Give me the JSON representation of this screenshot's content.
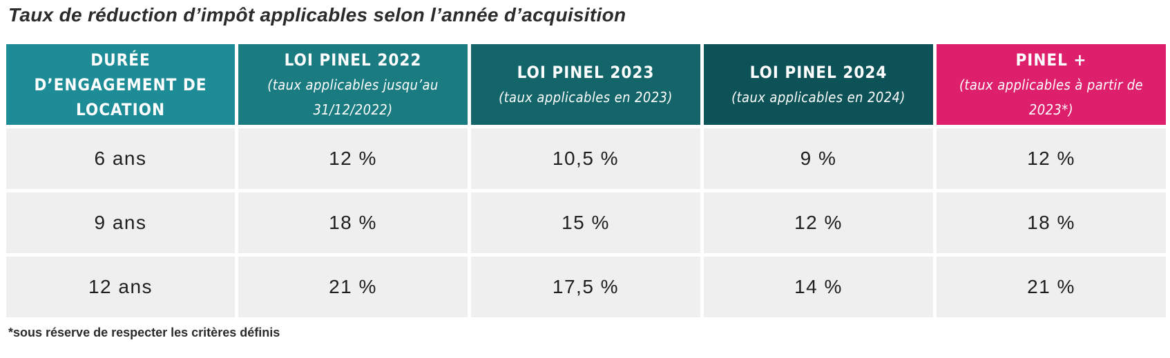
{
  "title": "Taux de réduction d’impôt applicables selon l’année d’acquisition",
  "table": {
    "headers": [
      {
        "title": "DURÉE D’ENGAGEMENT DE LOCATION",
        "subtitle": ""
      },
      {
        "title": "LOI PINEL 2022",
        "subtitle": "(taux applicables jusqu’au 31/12/2022)"
      },
      {
        "title": "LOI PINEL 2023",
        "subtitle": "(taux applicables en 2023)"
      },
      {
        "title": "LOI PINEL 2024",
        "subtitle": "(taux applicables en 2024)"
      },
      {
        "title": "PINEL +",
        "subtitle": "(taux applicables à partir de 2023*)"
      }
    ],
    "header_colors": [
      "#1e8c96",
      "#1a7b80",
      "#136569",
      "#0d5257",
      "#de1f6b"
    ],
    "rows": [
      [
        "6 ans",
        "12 %",
        "10,5 %",
        "9 %",
        "12 %"
      ],
      [
        "9 ans",
        "18 %",
        "15 %",
        "12 %",
        "18 %"
      ],
      [
        "12 ans",
        "21 %",
        "17,5 %",
        "14 %",
        "21 %"
      ]
    ]
  },
  "footnote": "*sous réserve de respecter les critères définis"
}
